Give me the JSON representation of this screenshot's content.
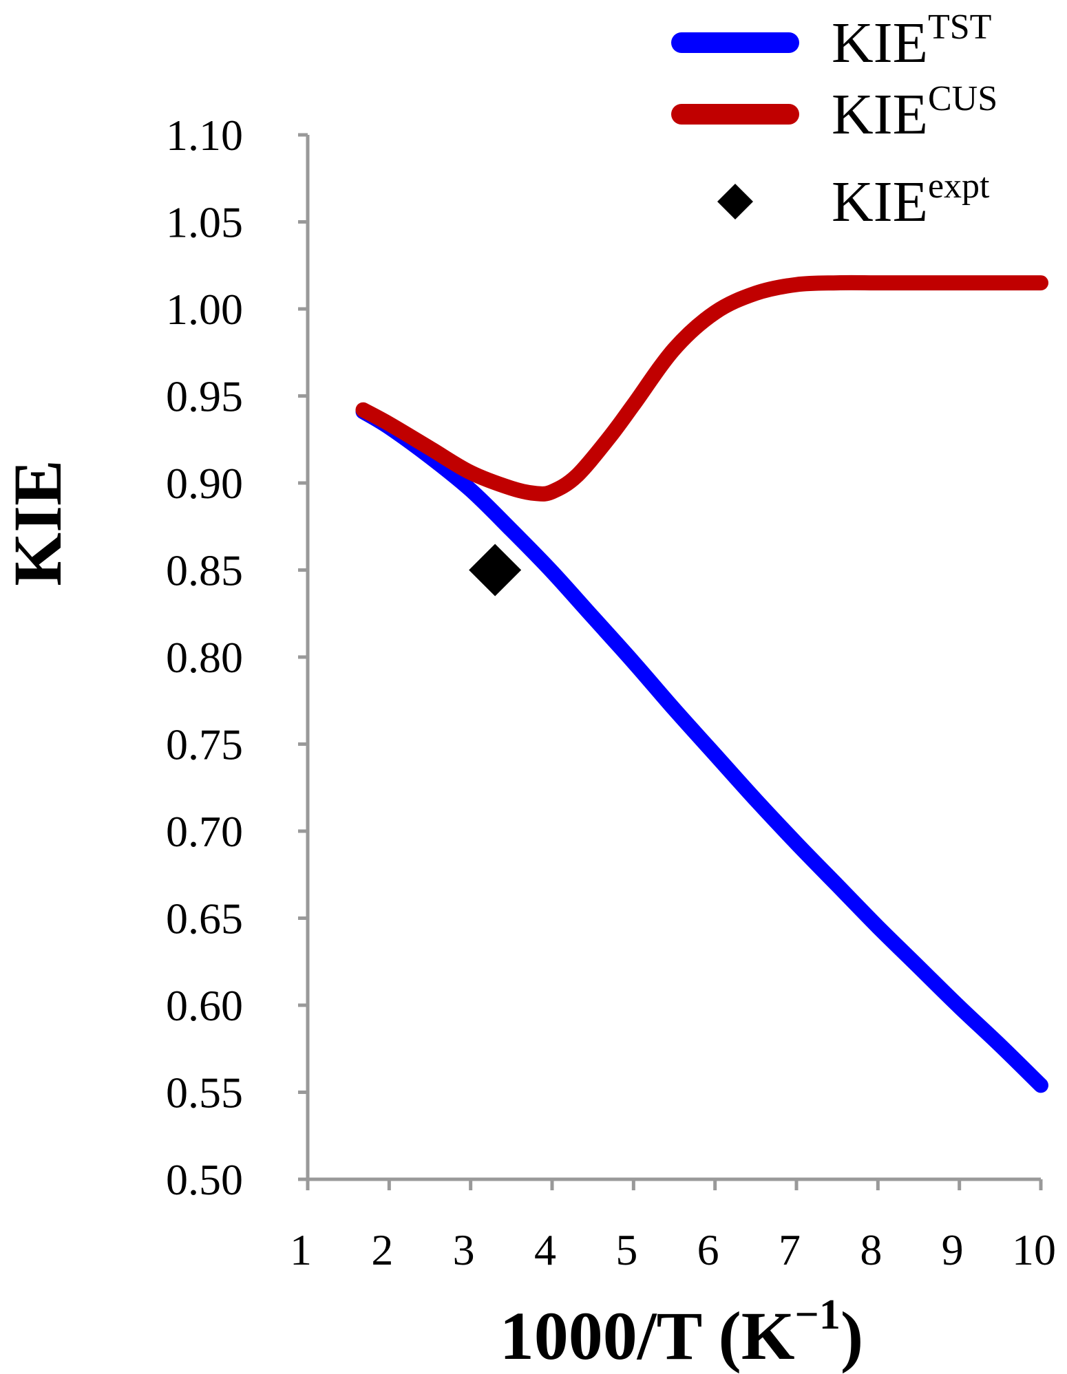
{
  "chart_data": {
    "type": "line",
    "title": "",
    "xlabel": "1000/T (K",
    "xlabel_sup": "−1",
    "xlabel_close": ")",
    "ylabel": "KIE",
    "xlim": [
      1,
      10
    ],
    "ylim": [
      0.5,
      1.1
    ],
    "x_ticks": [
      1,
      2,
      3,
      4,
      5,
      6,
      7,
      8,
      9,
      10
    ],
    "x_tick_labels": [
      "1",
      "2",
      "3",
      "4",
      "5",
      "6",
      "7",
      "8",
      "9",
      "10"
    ],
    "y_ticks": [
      0.5,
      0.55,
      0.6,
      0.65,
      0.7,
      0.75,
      0.8,
      0.85,
      0.9,
      0.95,
      1.0,
      1.05,
      1.1
    ],
    "y_tick_labels": [
      "0.50",
      "0.55",
      "0.60",
      "0.65",
      "0.70",
      "0.75",
      "0.80",
      "0.85",
      "0.90",
      "0.95",
      "1.00",
      "1.05",
      "1.10"
    ],
    "grid": false,
    "legend_position": "top-right",
    "series": [
      {
        "name": "KIE",
        "name_sup": "TST",
        "kind": "line",
        "color": "#0000ff",
        "x": [
          1.68,
          2.0,
          2.5,
          3.0,
          3.5,
          4.0,
          4.5,
          5.0,
          5.5,
          6.0,
          6.5,
          7.0,
          7.5,
          8.0,
          8.5,
          9.0,
          9.5,
          10.0
        ],
        "y": [
          0.941,
          0.932,
          0.915,
          0.896,
          0.873,
          0.849,
          0.823,
          0.797,
          0.77,
          0.744,
          0.718,
          0.693,
          0.669,
          0.645,
          0.622,
          0.599,
          0.577,
          0.554
        ]
      },
      {
        "name": "KIE",
        "name_sup": "CUS",
        "kind": "line",
        "color": "#c00000",
        "x": [
          1.68,
          2.0,
          2.5,
          3.0,
          3.5,
          3.8,
          4.0,
          4.3,
          4.7,
          5.0,
          5.5,
          6.0,
          6.5,
          7.0,
          7.5,
          8.0,
          8.5,
          9.0,
          10.0
        ],
        "y": [
          0.942,
          0.934,
          0.92,
          0.906,
          0.897,
          0.894,
          0.895,
          0.904,
          0.926,
          0.945,
          0.977,
          0.998,
          1.009,
          1.014,
          1.015,
          1.015,
          1.015,
          1.015,
          1.015
        ]
      },
      {
        "name": "KIE",
        "name_sup": "expt",
        "kind": "scatter",
        "marker": "diamond",
        "color": "#000000",
        "x": [
          3.3
        ],
        "y": [
          0.85
        ]
      }
    ]
  }
}
